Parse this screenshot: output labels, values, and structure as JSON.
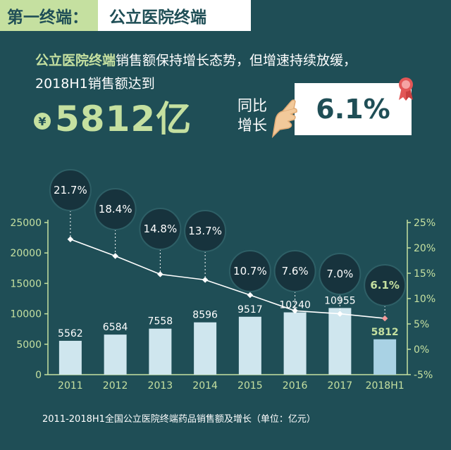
{
  "banner": {
    "section": "第一终端：",
    "title": "公立医院终端"
  },
  "headline": {
    "highlight": "公立医院终端",
    "line1_rest": "销售额保持增长态势，但增速持续放缓，",
    "line2": "2018H1销售额达到"
  },
  "summary": {
    "currency_symbol": "¥",
    "amount": "5812亿",
    "yoy_label_line1": "同比",
    "yoy_label_line2": "增长",
    "yoy_value": "6.1%"
  },
  "caption": "2011-2018H1全国公立医院终端药品销售额及增长（单位：亿元）",
  "colors": {
    "background": "#1f4e56",
    "accent": "#c5e0a0",
    "bar": "#cfe6ee",
    "bar_last": "#a9d2e4",
    "line": "#ffffff",
    "bubble": "#17333d"
  },
  "icons": {
    "hand": "hand-holding-card-icon",
    "ribbon": "award-ribbon-icon",
    "currency": "yen-icon"
  },
  "chart_data": {
    "type": "bar",
    "categories": [
      "2011",
      "2012",
      "2013",
      "2014",
      "2015",
      "2016",
      "2017",
      "2018H1"
    ],
    "series": [
      {
        "values": [
          5562,
          6584,
          7558,
          8596,
          9517,
          10240,
          10955,
          5812
        ]
      },
      {
        "values": [
          21.7,
          18.4,
          14.8,
          13.7,
          10.7,
          7.6,
          7.0,
          6.1
        ]
      }
    ],
    "value_labels": [
      "5562",
      "6584",
      "7558",
      "8596",
      "9517",
      "10240",
      "10955",
      "5812"
    ],
    "growth_labels": [
      "21.7%",
      "18.4%",
      "14.8%",
      "13.7%",
      "10.7%",
      "7.6%",
      "7.0%",
      "6.1%"
    ],
    "y_left": {
      "ticks": [
        0,
        5000,
        10000,
        15000,
        20000,
        25000
      ],
      "tick_labels": [
        "0",
        "5000",
        "10000",
        "15000",
        "20000",
        "25000"
      ],
      "ylim": [
        0,
        25000
      ]
    },
    "y_right": {
      "ticks": [
        -5,
        0,
        5,
        10,
        15,
        20,
        25
      ],
      "tick_labels": [
        "-5%",
        "0%",
        "5%",
        "10%",
        "15%",
        "20%",
        "25%"
      ],
      "ylim": [
        -5,
        25
      ]
    },
    "grid": false,
    "highlight_last": true
  }
}
